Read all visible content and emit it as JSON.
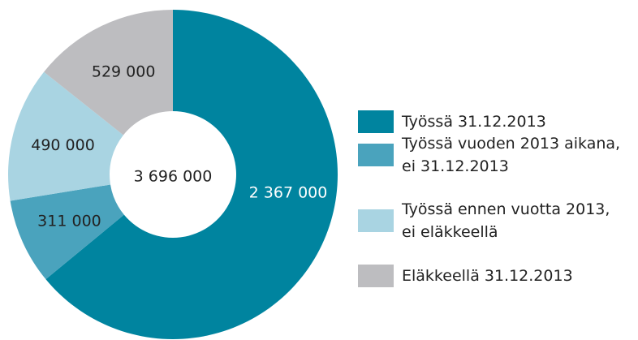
{
  "chart_data": {
    "type": "donut",
    "categories": [
      "Työssä 31.12.2013",
      "Työssä vuoden 2013 aikana,\nei 31.12.2013",
      "Työssä ennen vuotta 2013,\nei eläkkeellä",
      "Eläkkeellä 31.12.2013"
    ],
    "values": [
      2367000,
      311000,
      490000,
      529000
    ],
    "value_labels": [
      "2 367 000",
      "311 000",
      "490 000",
      "529 000"
    ],
    "colors": [
      "#00849f",
      "#4aa3bd",
      "#a9d4e2",
      "#bdbdc0"
    ],
    "center_label": "3 696 000"
  }
}
